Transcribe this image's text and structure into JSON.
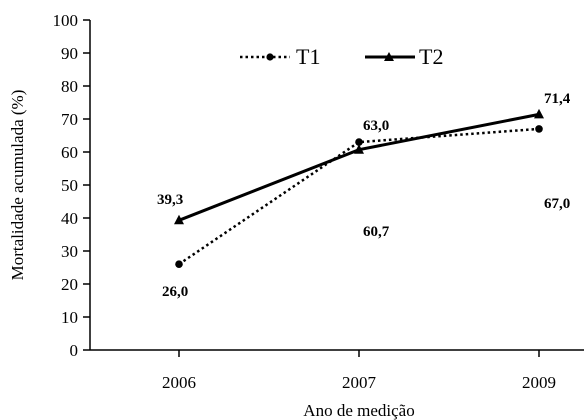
{
  "chart_data": {
    "type": "line",
    "title": "",
    "xlabel": "Ano de medição",
    "ylabel": "Mortalidade acumulada (%)",
    "categories": [
      "2006",
      "2007",
      "2009"
    ],
    "ylim": [
      0,
      100
    ],
    "yticks": [
      "0",
      "10",
      "20",
      "30",
      "40",
      "50",
      "60",
      "70",
      "80",
      "90",
      "100"
    ],
    "grid": false,
    "legend_position": "top-center",
    "series": [
      {
        "name": "T1",
        "style": "dotted",
        "marker": "circle",
        "color": "#000000",
        "values": [
          26.0,
          63.0,
          67.0
        ],
        "labels": [
          "26,0",
          "63,0",
          "67,0"
        ]
      },
      {
        "name": "T2",
        "style": "solid",
        "marker": "triangle",
        "color": "#000000",
        "values": [
          39.3,
          60.7,
          71.4
        ],
        "labels": [
          "39,3",
          "60,7",
          "71,4"
        ]
      }
    ]
  }
}
